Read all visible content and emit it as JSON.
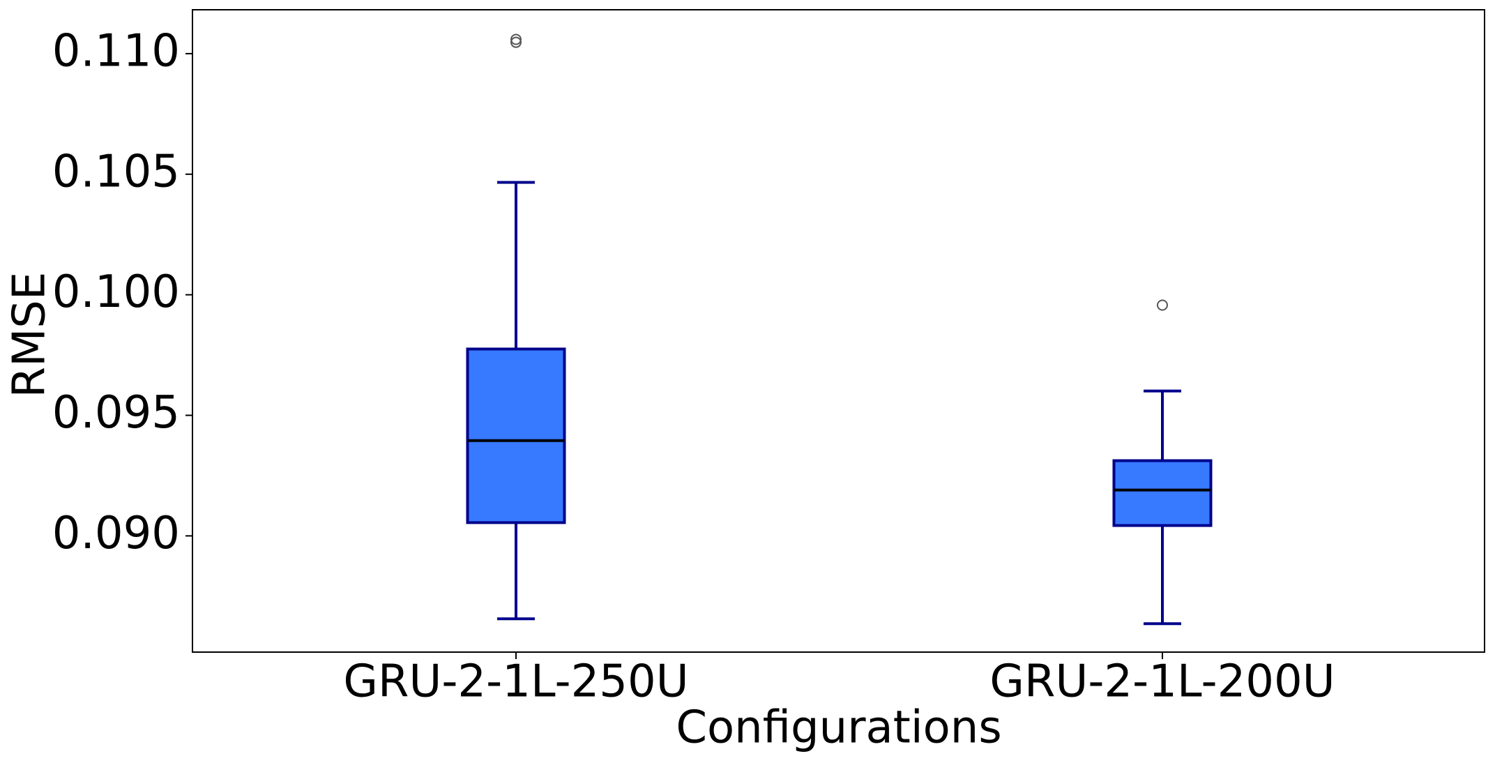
{
  "chart_data": {
    "type": "box",
    "x_label": "Configurations",
    "y_label": "RMSE",
    "categories": [
      "GRU-2-1L-250U",
      "GRU-2-1L-200U"
    ],
    "boxes": [
      {
        "min": 0.08656,
        "q1": 0.09055,
        "median": 0.09395,
        "q3": 0.09775,
        "max": 0.10466,
        "outliers": [
          0.11059,
          0.11047
        ]
      },
      {
        "min": 0.08636,
        "q1": 0.09043,
        "median": 0.0919,
        "q3": 0.09312,
        "max": 0.09601,
        "outliers": [
          0.09957
        ]
      }
    ],
    "box_color": "#3779ff",
    "edge_color": "#00008b",
    "median_color": "#000000",
    "ylim": [
      0.08518,
      0.11182
    ],
    "yticks": [
      {
        "value": 0.09,
        "label": "0.090"
      },
      {
        "value": 0.095,
        "label": "0.095"
      },
      {
        "value": 0.1,
        "label": "0.100"
      },
      {
        "value": 0.105,
        "label": "0.105"
      },
      {
        "value": 0.11,
        "label": "0.110"
      }
    ],
    "grid": false
  }
}
